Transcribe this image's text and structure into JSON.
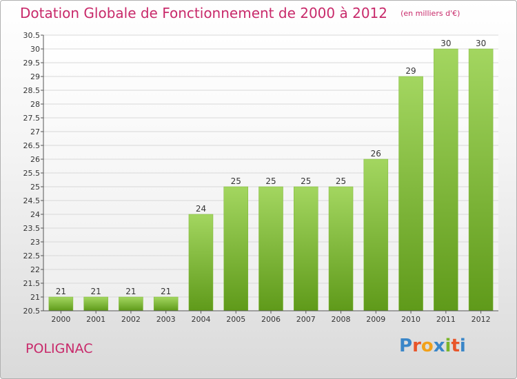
{
  "title": "Dotation Globale de Fonctionnement de 2000 à 2012",
  "unit_note": "(en milliers d'€)",
  "commune": "POLIGNAC",
  "brand": {
    "text": "Proxiti",
    "letter_colors": [
      "#3a86c8",
      "#e8552a",
      "#f2a11a",
      "#3a86c8",
      "#7ab52a",
      "#e8552a",
      "#3a86c8"
    ]
  },
  "colors": {
    "title": "#c8296a",
    "bar_light": "#a3d660",
    "bar_dark": "#5f9a1a",
    "grid": "#d8d8d8",
    "axis": "#555555"
  },
  "chart_data": {
    "type": "bar",
    "title": "Dotation Globale de Fonctionnement de 2000 à 2012",
    "categories": [
      "2000",
      "2001",
      "2002",
      "2003",
      "2004",
      "2005",
      "2006",
      "2007",
      "2008",
      "2009",
      "2010",
      "2011",
      "2012"
    ],
    "values": [
      21,
      21,
      21,
      21,
      24,
      25,
      25,
      25,
      25,
      26,
      29,
      30,
      30
    ],
    "ylim": [
      20.5,
      30.5
    ],
    "ytick_step": 0.5,
    "yticks": [
      "20.5",
      "21",
      "21.5",
      "22",
      "22.5",
      "23",
      "23.5",
      "24",
      "24.5",
      "25",
      "25.5",
      "26",
      "26.5",
      "27",
      "27.5",
      "28",
      "28.5",
      "29",
      "29.5",
      "30",
      "30.5"
    ],
    "grid": true,
    "data_labels": true
  }
}
